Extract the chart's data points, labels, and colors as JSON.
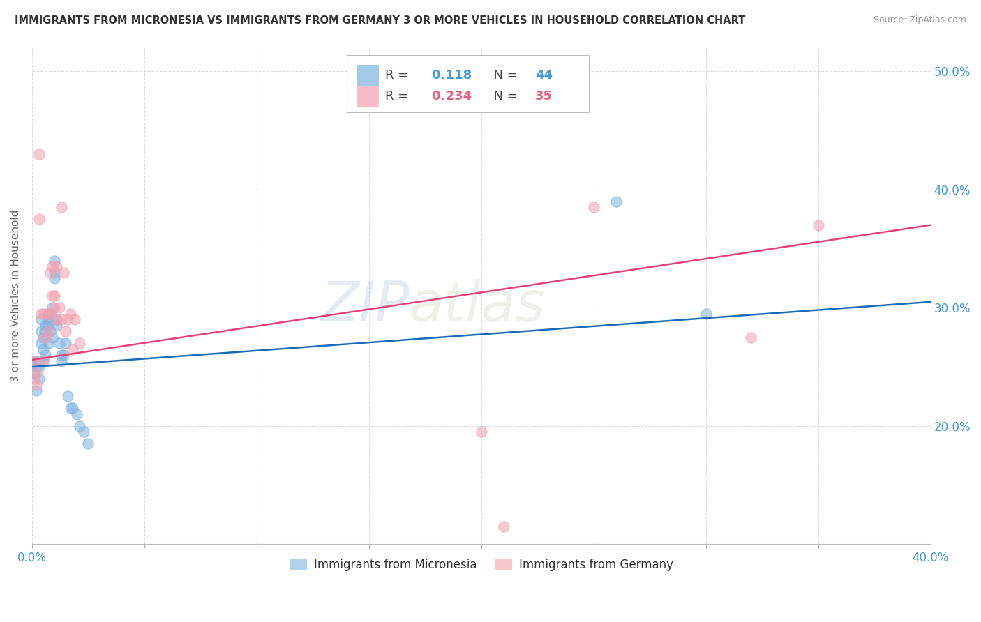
{
  "title": "IMMIGRANTS FROM MICRONESIA VS IMMIGRANTS FROM GERMANY 3 OR MORE VEHICLES IN HOUSEHOLD CORRELATION CHART",
  "source": "Source: ZipAtlas.com",
  "ylabel": "3 or more Vehicles in Household",
  "xlim": [
    0.0,
    0.4
  ],
  "ylim": [
    0.1,
    0.52
  ],
  "series1_name": "Immigrants from Micronesia",
  "series1_color": "#7EB3E0",
  "series1_R": 0.118,
  "series1_N": 44,
  "series1_x": [
    0.001,
    0.001,
    0.002,
    0.002,
    0.003,
    0.003,
    0.003,
    0.004,
    0.004,
    0.004,
    0.005,
    0.005,
    0.005,
    0.006,
    0.006,
    0.006,
    0.007,
    0.007,
    0.007,
    0.007,
    0.008,
    0.008,
    0.009,
    0.009,
    0.009,
    0.01,
    0.01,
    0.01,
    0.011,
    0.011,
    0.012,
    0.013,
    0.013,
    0.014,
    0.015,
    0.016,
    0.017,
    0.018,
    0.02,
    0.021,
    0.023,
    0.025,
    0.26,
    0.3
  ],
  "series1_y": [
    0.255,
    0.245,
    0.25,
    0.23,
    0.255,
    0.25,
    0.24,
    0.29,
    0.28,
    0.27,
    0.275,
    0.265,
    0.255,
    0.28,
    0.285,
    0.26,
    0.29,
    0.295,
    0.285,
    0.27,
    0.295,
    0.28,
    0.3,
    0.29,
    0.275,
    0.34,
    0.33,
    0.325,
    0.285,
    0.29,
    0.27,
    0.26,
    0.255,
    0.26,
    0.27,
    0.225,
    0.215,
    0.215,
    0.21,
    0.2,
    0.195,
    0.185,
    0.39,
    0.295
  ],
  "series2_name": "Immigrants from Germany",
  "series2_color": "#F4A0B0",
  "series2_R": 0.234,
  "series2_N": 35,
  "series2_x": [
    0.001,
    0.001,
    0.002,
    0.002,
    0.003,
    0.003,
    0.004,
    0.005,
    0.005,
    0.006,
    0.007,
    0.007,
    0.008,
    0.008,
    0.009,
    0.009,
    0.01,
    0.01,
    0.011,
    0.011,
    0.012,
    0.013,
    0.013,
    0.014,
    0.015,
    0.016,
    0.017,
    0.018,
    0.019,
    0.021,
    0.2,
    0.21,
    0.25,
    0.32,
    0.35
  ],
  "series2_y": [
    0.255,
    0.24,
    0.245,
    0.235,
    0.43,
    0.375,
    0.295,
    0.295,
    0.255,
    0.275,
    0.295,
    0.28,
    0.33,
    0.295,
    0.335,
    0.31,
    0.31,
    0.3,
    0.335,
    0.29,
    0.3,
    0.385,
    0.29,
    0.33,
    0.28,
    0.29,
    0.295,
    0.265,
    0.29,
    0.27,
    0.195,
    0.115,
    0.385,
    0.275,
    0.37
  ],
  "trend1_start_y": 0.25,
  "trend1_end_y": 0.305,
  "trend2_start_y": 0.256,
  "trend2_end_y": 0.37,
  "trend1_color": "#1A6BB5",
  "trend2_color": "#E8417A",
  "watermark_text": "ZIPatlas",
  "watermark_color": "#C8D8EA",
  "background_color": "#FFFFFF",
  "grid_color": "#DDDDDD",
  "yticks": [
    0.2,
    0.3,
    0.4,
    0.5
  ],
  "ytick_labels": [
    "20.0%",
    "30.0%",
    "40.0%",
    "50.0%"
  ],
  "xtick_left_label": "0.0%",
  "xtick_right_label": "40.0%",
  "corr_box_blue_color": "#4499DD",
  "corr_box_pink_color": "#E8607A"
}
